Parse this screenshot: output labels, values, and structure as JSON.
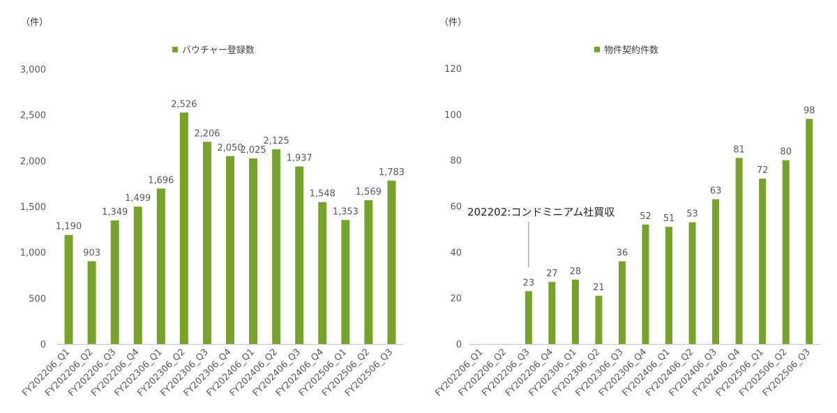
{
  "colors": {
    "bar": "#77a32d",
    "axis": "#bfbfbf",
    "text": "#595959"
  },
  "chart_data": [
    {
      "type": "bar",
      "unit_label": "（件）",
      "legend": "バウチャー登録数",
      "categories": [
        "FY202206_Q1",
        "FY202206_Q2",
        "FY202206_Q3",
        "FY202206_Q4",
        "FY202306_Q1",
        "FY202306_Q2",
        "FY202306_Q3",
        "FY202306_Q4",
        "FY202406_Q1",
        "FY202406_Q2",
        "FY202406_Q3",
        "FY202406_Q4",
        "FY202506_Q1",
        "FY202506_Q2",
        "FY202506_Q3"
      ],
      "values": [
        1190,
        903,
        1349,
        1499,
        1696,
        2526,
        2206,
        2050,
        2025,
        2125,
        1937,
        1548,
        1353,
        1569,
        1783
      ],
      "data_labels": [
        "1,190",
        "903",
        "1,349",
        "1,499",
        "1,696",
        "2,526",
        "2,206",
        "2,050",
        "2,025",
        "2,125",
        "1,937",
        "1,548",
        "1,353",
        "1,569",
        "1,783"
      ],
      "ylim": [
        0,
        3000
      ],
      "yticks": [
        "0",
        "500",
        "1,000",
        "1,500",
        "2,000",
        "2,500",
        "3,000"
      ],
      "ytick_values": [
        0,
        500,
        1000,
        1500,
        2000,
        2500,
        3000
      ]
    },
    {
      "type": "bar",
      "unit_label": "（件）",
      "legend": "物件契約件数",
      "categories": [
        "FY202206_Q1",
        "FY202206_Q2",
        "FY202206_Q3",
        "FY202206_Q4",
        "FY202306_Q1",
        "FY202306_Q2",
        "FY202306_Q3",
        "FY202306_Q4",
        "FY202406_Q1",
        "FY202406_Q2",
        "FY202406_Q3",
        "FY202406_Q4",
        "FY202506_Q1",
        "FY202506_Q2",
        "FY202506_Q3"
      ],
      "values": [
        null,
        null,
        23,
        27,
        28,
        21,
        36,
        52,
        51,
        53,
        63,
        81,
        72,
        80,
        98
      ],
      "data_labels": [
        "",
        "",
        "23",
        "27",
        "28",
        "21",
        "36",
        "52",
        "51",
        "53",
        "63",
        "81",
        "72",
        "80",
        "98"
      ],
      "ylim": [
        0,
        120
      ],
      "yticks": [
        "0",
        "20",
        "40",
        "60",
        "80",
        "100",
        "120"
      ],
      "ytick_values": [
        0,
        20,
        40,
        60,
        80,
        100,
        120
      ],
      "annotation": {
        "text": "202202:コンドミニアム社買収",
        "category_index": 2
      }
    }
  ]
}
